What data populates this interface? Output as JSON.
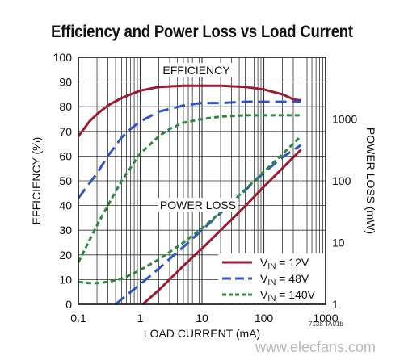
{
  "chart_data": {
    "type": "line",
    "title": "Efficiency and Power Loss vs Load Current",
    "xlabel": "LOAD CURRENT (mA)",
    "ylabel_left": "EFFICIENCY (%)",
    "ylabel_right": "POWER LOSS (mW)",
    "x_scale": "log",
    "xlim": [
      0.1,
      1000
    ],
    "ylim_left": [
      0,
      100
    ],
    "ylim_right_log": [
      1,
      10000
    ],
    "x_ticks": [
      "0.1",
      "1",
      "10",
      "100",
      "1000"
    ],
    "y_ticks_left": [
      "0",
      "10",
      "20",
      "30",
      "40",
      "50",
      "60",
      "70",
      "80",
      "90",
      "100"
    ],
    "y_ticks_right": [
      "1",
      "10",
      "100",
      "1000"
    ],
    "grid": true,
    "legend_position": "bottom-right",
    "annotations": [
      "EFFICIENCY",
      "POWER LOSS"
    ],
    "legend_series": [
      {
        "label_main": "V",
        "label_sub": "IN",
        "label_tail": " = 12V",
        "color": "#9b1b30",
        "dash": "solid"
      },
      {
        "label_main": "V",
        "label_sub": "IN",
        "label_tail": " = 48V",
        "color": "#2e55c7",
        "dash": "long-dash"
      },
      {
        "label_main": "V",
        "label_sub": "IN",
        "label_tail": " = 140V",
        "color": "#2c8a3c",
        "dash": "short-dash"
      }
    ],
    "series": [
      {
        "group": "efficiency",
        "axis": "left",
        "color": "#9b1b30",
        "dash": "solid",
        "x": [
          0.1,
          0.15,
          0.2,
          0.3,
          0.5,
          0.7,
          1,
          2,
          5,
          10,
          20,
          50,
          100,
          200,
          300,
          400
        ],
        "y": [
          68,
          74,
          77,
          80.5,
          83.5,
          85,
          86.5,
          88,
          88.5,
          88.5,
          88.5,
          88,
          87,
          85,
          83,
          82.5
        ]
      },
      {
        "group": "efficiency",
        "axis": "left",
        "color": "#2e55c7",
        "dash": "long-dash",
        "x": [
          0.1,
          0.2,
          0.3,
          0.5,
          0.7,
          1,
          2,
          5,
          10,
          20,
          50,
          100,
          200,
          400
        ],
        "y": [
          43,
          53,
          60,
          67.5,
          71,
          74,
          78,
          80.5,
          81.5,
          81.5,
          82,
          82,
          82,
          82
        ]
      },
      {
        "group": "efficiency",
        "axis": "left",
        "color": "#2c8a3c",
        "dash": "short-dash",
        "x": [
          0.1,
          0.2,
          0.3,
          0.5,
          1,
          2,
          3,
          5,
          10,
          20,
          50,
          100,
          200,
          400
        ],
        "y": [
          17,
          32,
          40,
          50,
          61,
          68,
          71,
          73.5,
          75,
          76,
          76.5,
          76.5,
          76.5,
          76.5
        ]
      },
      {
        "group": "power_loss",
        "axis": "right",
        "color": "#9b1b30",
        "dash": "solid",
        "x": [
          1.1,
          2,
          5,
          10,
          20,
          50,
          100,
          200,
          400
        ],
        "y": [
          1,
          1.7,
          4.2,
          8,
          15.8,
          39,
          80,
          160,
          320
        ]
      },
      {
        "group": "power_loss",
        "axis": "right",
        "color": "#2e55c7",
        "dash": "long-dash",
        "x": [
          0.4,
          0.6,
          1,
          2,
          5,
          10,
          20,
          50,
          100,
          200,
          400
        ],
        "y": [
          1,
          1.4,
          2.1,
          3.8,
          8.5,
          16,
          30,
          70,
          135,
          240,
          380
        ]
      },
      {
        "group": "power_loss",
        "axis": "right",
        "color": "#2c8a3c",
        "dash": "short-dash",
        "x": [
          0.1,
          0.15,
          0.2,
          0.3,
          0.5,
          0.7,
          1,
          2,
          5,
          10,
          20,
          50,
          100,
          200,
          400
        ],
        "y": [
          2.3,
          2.2,
          2.2,
          2.3,
          2.6,
          3,
          3.6,
          5.3,
          10,
          17,
          31,
          72,
          140,
          270,
          530
        ]
      }
    ]
  },
  "footer": {
    "fig_code": "7138 TA01b",
    "watermark": "www.elecfans.com"
  }
}
